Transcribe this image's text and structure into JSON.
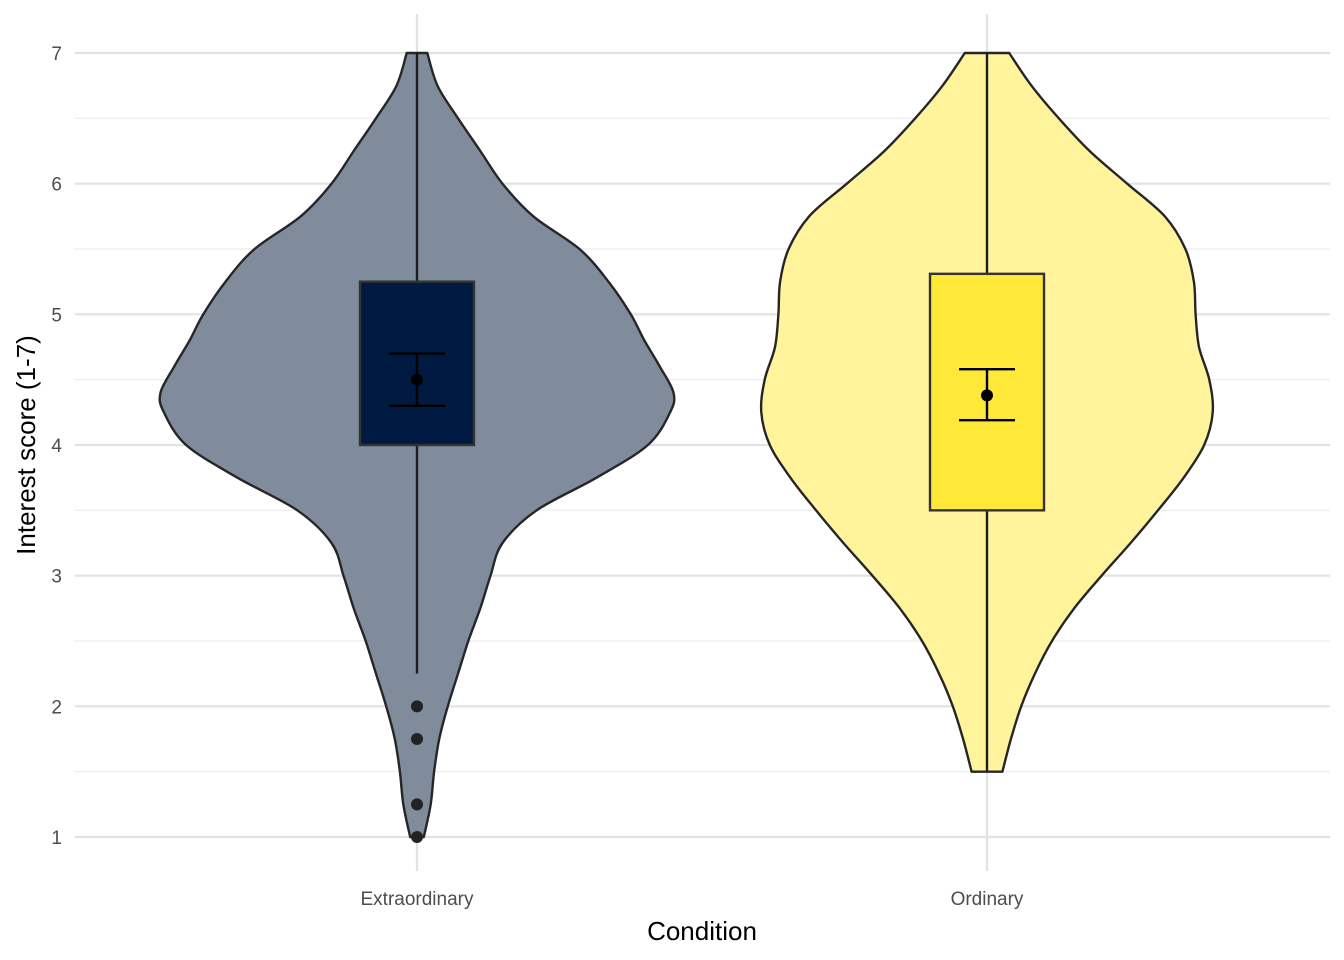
{
  "chart_data": {
    "type": "violin",
    "xlabel": "Condition",
    "ylabel": "Interest score (1-7)",
    "ylim": [
      0.75,
      7.3
    ],
    "yticks": [
      1,
      2,
      3,
      4,
      5,
      6,
      7
    ],
    "grid": true,
    "categories": [
      "Extraordinary",
      "Ordinary"
    ],
    "groups": [
      {
        "name": "Extraordinary",
        "violin_fill": "#808b9c",
        "box_fill": "#011a41",
        "min_data": 1.0,
        "max_data": 7.0,
        "density_profile": [
          [
            1.0,
            0.04
          ],
          [
            1.25,
            0.08
          ],
          [
            1.5,
            0.1
          ],
          [
            1.75,
            0.13
          ],
          [
            2.0,
            0.18
          ],
          [
            2.25,
            0.24
          ],
          [
            2.5,
            0.3
          ],
          [
            2.75,
            0.37
          ],
          [
            3.0,
            0.43
          ],
          [
            3.25,
            0.5
          ],
          [
            3.5,
            0.7
          ],
          [
            3.75,
            1.05
          ],
          [
            4.0,
            1.35
          ],
          [
            4.25,
            1.48
          ],
          [
            4.4,
            1.5
          ],
          [
            4.6,
            1.42
          ],
          [
            4.8,
            1.33
          ],
          [
            5.0,
            1.25
          ],
          [
            5.25,
            1.12
          ],
          [
            5.5,
            0.95
          ],
          [
            5.75,
            0.68
          ],
          [
            6.0,
            0.5
          ],
          [
            6.25,
            0.37
          ],
          [
            6.5,
            0.24
          ],
          [
            6.75,
            0.12
          ],
          [
            7.0,
            0.06
          ]
        ],
        "box": {
          "q1": 4.0,
          "median": 4.0,
          "q3": 5.25,
          "whisker_low": 2.25,
          "whisker_high": 7.0
        },
        "outliers": [
          2.0,
          1.75,
          1.25,
          1.0
        ],
        "mean": 4.5,
        "ci": [
          4.3,
          4.7
        ]
      },
      {
        "name": "Ordinary",
        "violin_fill": "#fff39b",
        "box_fill": "#ffe838",
        "min_data": 1.5,
        "max_data": 7.0,
        "density_profile": [
          [
            1.5,
            0.09
          ],
          [
            1.75,
            0.14
          ],
          [
            2.0,
            0.2
          ],
          [
            2.25,
            0.28
          ],
          [
            2.5,
            0.38
          ],
          [
            2.75,
            0.51
          ],
          [
            3.0,
            0.67
          ],
          [
            3.25,
            0.84
          ],
          [
            3.5,
            1.0
          ],
          [
            3.75,
            1.15
          ],
          [
            4.0,
            1.27
          ],
          [
            4.25,
            1.32
          ],
          [
            4.5,
            1.3
          ],
          [
            4.75,
            1.24
          ],
          [
            5.0,
            1.22
          ],
          [
            5.25,
            1.21
          ],
          [
            5.5,
            1.16
          ],
          [
            5.75,
            1.04
          ],
          [
            6.0,
            0.82
          ],
          [
            6.25,
            0.6
          ],
          [
            6.5,
            0.42
          ],
          [
            6.75,
            0.26
          ],
          [
            7.0,
            0.13
          ]
        ],
        "box": {
          "q1": 3.5,
          "median": 3.5,
          "q3": 5.31,
          "whisker_low": 1.5,
          "whisker_high": 7.0
        },
        "outliers": [],
        "mean": 4.38,
        "ci": [
          4.19,
          4.58
        ]
      }
    ]
  }
}
